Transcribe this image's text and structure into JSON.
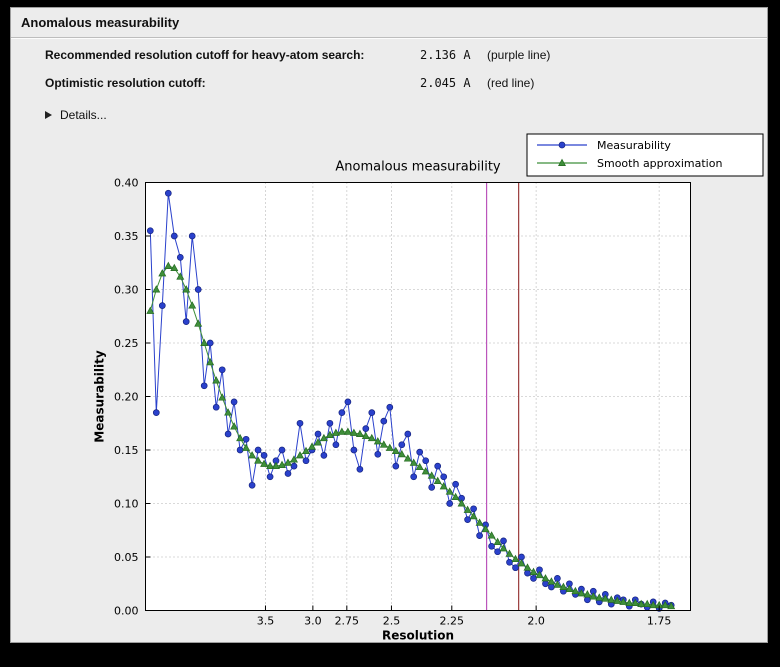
{
  "header": {
    "title": "Anomalous measurability"
  },
  "info": {
    "rows": [
      {
        "label": "Recommended resolution cutoff for heavy-atom search:",
        "value": "2.136 A",
        "note": "(purple line)"
      },
      {
        "label": "Optimistic resolution cutoff:",
        "value": "2.045 A",
        "note": "(red line)"
      }
    ],
    "details_label": "Details..."
  },
  "colors": {
    "window_background": "#ececec",
    "plot_background": "#ffffff",
    "measurability_blue": "#2a41cc",
    "smooth_green": "#3f8f3a",
    "purple_cutoff_line": "#bb55bb",
    "red_cutoff_line": "#993b3b"
  },
  "chart_data": {
    "type": "line",
    "title": "Anomalous measurability",
    "xlabel": "Resolution",
    "ylabel": "Measurability",
    "x_axis": {
      "scale": "linear in 1/d^2; resolution d in Angstroms decreases left to right",
      "range_d": [
        11.95,
        1.7
      ],
      "ticks": [
        3.5,
        3.0,
        2.75,
        2.5,
        2.25,
        2.0,
        1.75
      ],
      "tick_labels": [
        "3.5",
        "3.0",
        "2.75",
        "2.5",
        "2.25",
        "2.0",
        "1.75"
      ]
    },
    "y_axis": {
      "min": 0.0,
      "max": 0.4,
      "tick_step": 0.05
    },
    "grid": true,
    "legend": {
      "position": "top-right",
      "entries": [
        "Measurability",
        "Smooth approximation"
      ]
    },
    "series": [
      {
        "name": "Measurability",
        "color": "#2a41cc",
        "edge_color": "#16247f",
        "marker": "circle",
        "x_u_start": 0.01,
        "x_u_end": 0.334,
        "d_first": 10.0,
        "d_last": 1.73,
        "values": [
          0.355,
          0.185,
          0.285,
          0.39,
          0.35,
          0.33,
          0.27,
          0.35,
          0.3,
          0.21,
          0.25,
          0.19,
          0.225,
          0.165,
          0.195,
          0.15,
          0.16,
          0.117,
          0.15,
          0.145,
          0.125,
          0.14,
          0.15,
          0.128,
          0.135,
          0.175,
          0.14,
          0.15,
          0.165,
          0.145,
          0.175,
          0.155,
          0.185,
          0.195,
          0.15,
          0.132,
          0.17,
          0.185,
          0.146,
          0.177,
          0.19,
          0.135,
          0.155,
          0.165,
          0.125,
          0.148,
          0.14,
          0.115,
          0.135,
          0.125,
          0.1,
          0.118,
          0.105,
          0.085,
          0.095,
          0.07,
          0.08,
          0.06,
          0.055,
          0.065,
          0.045,
          0.04,
          0.05,
          0.035,
          0.03,
          0.038,
          0.025,
          0.022,
          0.03,
          0.018,
          0.025,
          0.015,
          0.02,
          0.01,
          0.018,
          0.008,
          0.015,
          0.006,
          0.012,
          0.01,
          0.004,
          0.01,
          0.006,
          0.003,
          0.008,
          0.002,
          0.007,
          0.005
        ]
      },
      {
        "name": "Smooth approximation",
        "color": "#3f8f3a",
        "edge_color": "#256b22",
        "marker": "triangle",
        "x_u_start": 0.01,
        "x_u_end": 0.334,
        "d_first": 10.0,
        "d_last": 1.73,
        "values": [
          0.28,
          0.3,
          0.315,
          0.322,
          0.32,
          0.312,
          0.3,
          0.285,
          0.268,
          0.25,
          0.232,
          0.215,
          0.199,
          0.185,
          0.172,
          0.161,
          0.152,
          0.145,
          0.14,
          0.137,
          0.135,
          0.135,
          0.136,
          0.138,
          0.141,
          0.145,
          0.149,
          0.153,
          0.157,
          0.161,
          0.164,
          0.166,
          0.167,
          0.167,
          0.166,
          0.165,
          0.163,
          0.161,
          0.158,
          0.155,
          0.152,
          0.149,
          0.146,
          0.142,
          0.138,
          0.134,
          0.13,
          0.126,
          0.121,
          0.116,
          0.111,
          0.106,
          0.1,
          0.094,
          0.088,
          0.082,
          0.076,
          0.07,
          0.064,
          0.058,
          0.053,
          0.048,
          0.044,
          0.04,
          0.036,
          0.033,
          0.03,
          0.027,
          0.024,
          0.022,
          0.02,
          0.018,
          0.016,
          0.015,
          0.013,
          0.012,
          0.011,
          0.01,
          0.009,
          0.008,
          0.007,
          0.007,
          0.006,
          0.006,
          0.005,
          0.005,
          0.005,
          0.004
        ]
      }
    ],
    "vlines": [
      {
        "x_d": 2.136,
        "color": "#bb55bb",
        "meaning": "recommended resolution cutoff (purple line)"
      },
      {
        "x_d": 2.045,
        "color": "#993b3b",
        "meaning": "optimistic resolution cutoff (red line)"
      }
    ]
  }
}
